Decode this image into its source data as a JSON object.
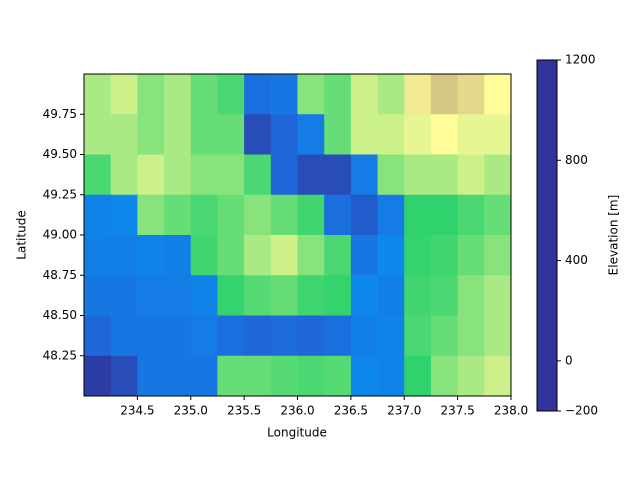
{
  "chart_data": {
    "type": "heatmap",
    "xlabel": "Longitude",
    "ylabel": "Latitude",
    "colorbar_label": "Elevation [m]",
    "xlim": [
      234.0,
      238.0
    ],
    "ylim": [
      48.0,
      50.0
    ],
    "xticks": [
      234.5,
      {
        "value": 235,
        "label": "235.0"
      },
      235.5,
      {
        "value": 236,
        "label": "236.0"
      },
      236.5,
      {
        "value": 237,
        "label": "237.0"
      },
      237.5,
      {
        "value": 238,
        "label": "238.0"
      }
    ],
    "yticks": [
      48.25,
      {
        "value": 48.5,
        "label": "48.50"
      },
      48.75,
      {
        "value": 49,
        "label": "49.00"
      },
      49.25,
      {
        "value": 49.5,
        "label": "49.50"
      },
      49.75
    ],
    "clim": [
      -200,
      1200
    ],
    "cticks": [
      {
        "value": -200,
        "label": "−200"
      },
      0,
      400,
      800,
      1200
    ],
    "colormap": [
      {
        "value": -200,
        "color": "#303399"
      },
      {
        "value": -100,
        "color": "#1f66d9"
      },
      {
        "value": 0,
        "color": "#0a90f0"
      },
      {
        "value": 0,
        "color": "#14cc66"
      },
      {
        "value": 150,
        "color": "#66dd77"
      },
      {
        "value": 300,
        "color": "#ccf08a"
      },
      {
        "value": 400,
        "color": "#fffc99"
      },
      {
        "value": 600,
        "color": "#c8b47e"
      },
      {
        "value": 800,
        "color": "#7f5f50"
      },
      {
        "value": 1000,
        "color": "#b09a92"
      },
      {
        "value": 1200,
        "color": "#ffffff"
      }
    ],
    "z": [
      [
        250,
        300,
        200,
        250,
        150,
        100,
        -80,
        -60,
        200,
        150,
        300,
        250,
        450,
        550,
        500,
        400
      ],
      [
        250,
        250,
        200,
        250,
        150,
        150,
        -150,
        -100,
        -50,
        150,
        300,
        300,
        350,
        400,
        350,
        350
      ],
      [
        100,
        250,
        300,
        250,
        200,
        200,
        100,
        -100,
        -150,
        -150,
        -50,
        200,
        250,
        250,
        300,
        250
      ],
      [
        -30,
        -20,
        200,
        150,
        100,
        150,
        200,
        150,
        80,
        -80,
        -120,
        -50,
        50,
        50,
        100,
        150
      ],
      [
        -40,
        -40,
        -30,
        -40,
        80,
        150,
        250,
        300,
        200,
        100,
        -60,
        -20,
        60,
        80,
        150,
        200
      ],
      [
        -60,
        -60,
        -50,
        -50,
        -30,
        60,
        120,
        150,
        80,
        60,
        -20,
        -40,
        80,
        100,
        200,
        250
      ],
      [
        -100,
        -60,
        -60,
        -60,
        -50,
        -80,
        -100,
        -90,
        -100,
        -80,
        -40,
        -30,
        100,
        150,
        200,
        250
      ],
      [
        -180,
        -150,
        -60,
        -60,
        -60,
        150,
        150,
        120,
        100,
        120,
        -20,
        -30,
        50,
        200,
        250,
        300
      ]
    ]
  }
}
